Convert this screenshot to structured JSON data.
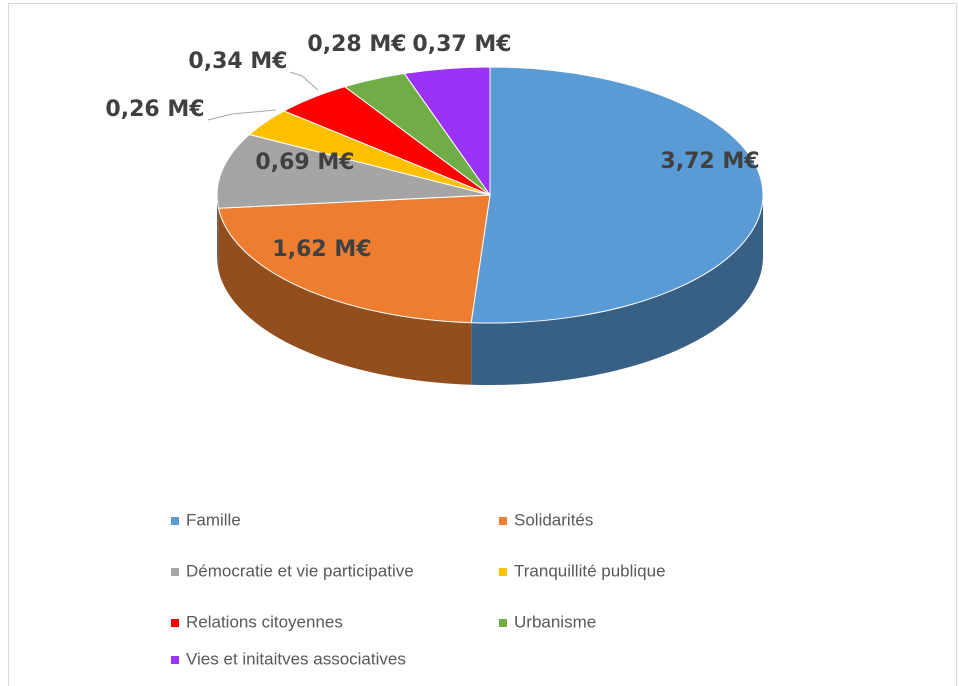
{
  "chart_data": {
    "type": "pie",
    "categories": [
      "Famille",
      "Solidarités",
      "Démocratie et vie participative",
      "Tranquillité publique",
      "Relations citoyennes",
      "Urbanisme",
      "Vies et initaitves associatives"
    ],
    "values": [
      3.72,
      1.62,
      0.69,
      0.26,
      0.34,
      0.28,
      0.37
    ],
    "value_labels": [
      "3,72 M€",
      "1,62 M€",
      "0,69 M€",
      "0,26 M€",
      "0,34 M€",
      "0,28 M€",
      "0,37 M€"
    ],
    "colors": [
      "#5b9bd5",
      "#ed7d31",
      "#a5a5a5",
      "#ffc000",
      "#ff0000",
      "#70ad47",
      "#9a33f5"
    ],
    "legend": "bottom"
  }
}
